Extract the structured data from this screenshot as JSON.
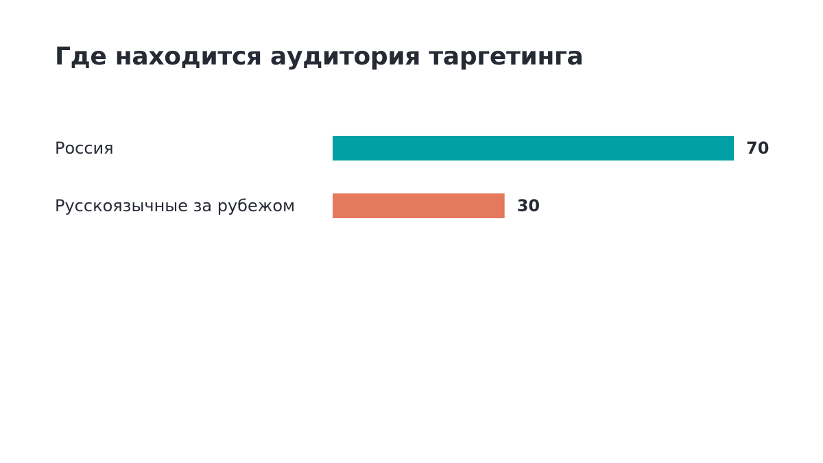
{
  "chart_data": {
    "type": "bar",
    "orientation": "horizontal",
    "title": "Где находится аудитория таргетинга",
    "categories": [
      "Россия",
      "Русскоязычные за рубежом"
    ],
    "values": [
      70,
      30
    ],
    "colors": [
      "#00a0a4",
      "#e4795b"
    ],
    "xlim": [
      0,
      70
    ],
    "grid": false,
    "legend": "none",
    "data_labels": true
  }
}
